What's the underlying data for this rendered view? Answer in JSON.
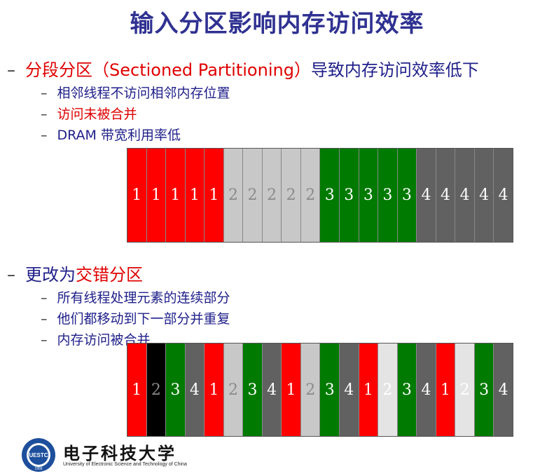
{
  "title": "输入分区影响内存访问效率",
  "section1": {
    "dash": "–",
    "heading_red": "分段分区（Sectioned Partitioning）",
    "heading_blue": "导致内存访问效率低下",
    "items": [
      {
        "text": "相邻线程不访问相邻内存位置",
        "color": "blue"
      },
      {
        "text": "访问未被合并",
        "color": "red"
      },
      {
        "text": "DRAM 带宽利用率低",
        "color": "blue"
      }
    ]
  },
  "section2": {
    "dash": "–",
    "heading_blue": "更改为",
    "heading_red": "交错分区",
    "items": [
      {
        "text": "所有线程处理元素的连续部分",
        "color": "blue"
      },
      {
        "text": "他们都移动到下一部分并重复",
        "color": "blue"
      },
      {
        "text": "内存访问被合并",
        "color": "blue"
      }
    ]
  },
  "strip1": [
    {
      "label": "1",
      "color": "red"
    },
    {
      "label": "1",
      "color": "red"
    },
    {
      "label": "1",
      "color": "red"
    },
    {
      "label": "1",
      "color": "red"
    },
    {
      "label": "1",
      "color": "red"
    },
    {
      "label": "2",
      "color": "grey"
    },
    {
      "label": "2",
      "color": "grey"
    },
    {
      "label": "2",
      "color": "grey"
    },
    {
      "label": "2",
      "color": "grey"
    },
    {
      "label": "2",
      "color": "grey"
    },
    {
      "label": "3",
      "color": "green"
    },
    {
      "label": "3",
      "color": "green"
    },
    {
      "label": "3",
      "color": "green"
    },
    {
      "label": "3",
      "color": "green"
    },
    {
      "label": "3",
      "color": "green"
    },
    {
      "label": "4",
      "color": "dark"
    },
    {
      "label": "4",
      "color": "dark"
    },
    {
      "label": "4",
      "color": "dark"
    },
    {
      "label": "4",
      "color": "dark"
    },
    {
      "label": "4",
      "color": "dark"
    }
  ],
  "strip2": [
    {
      "label": "1",
      "color": "red"
    },
    {
      "label": "2",
      "color": "black"
    },
    {
      "label": "3",
      "color": "green"
    },
    {
      "label": "4",
      "color": "dark"
    },
    {
      "label": "1",
      "color": "red"
    },
    {
      "label": "2",
      "color": "grey"
    },
    {
      "label": "3",
      "color": "green"
    },
    {
      "label": "4",
      "color": "dark"
    },
    {
      "label": "1",
      "color": "red"
    },
    {
      "label": "2",
      "color": "grey"
    },
    {
      "label": "3",
      "color": "green"
    },
    {
      "label": "4",
      "color": "dark"
    },
    {
      "label": "1",
      "color": "red"
    },
    {
      "label": "2",
      "color": "light"
    },
    {
      "label": "3",
      "color": "green"
    },
    {
      "label": "4",
      "color": "dark"
    },
    {
      "label": "1",
      "color": "red"
    },
    {
      "label": "2",
      "color": "light"
    },
    {
      "label": "3",
      "color": "green"
    },
    {
      "label": "4",
      "color": "dark"
    }
  ],
  "logo": {
    "name_cn": "电子科技大学",
    "name_en": "University of Electronic Science and Technology of China",
    "emblem_text": "UESTC",
    "emblem_year": "1956"
  },
  "colors": {
    "title": "#2f3191",
    "accent_red": "#e00000",
    "text_blue": "#1f1f8a"
  }
}
